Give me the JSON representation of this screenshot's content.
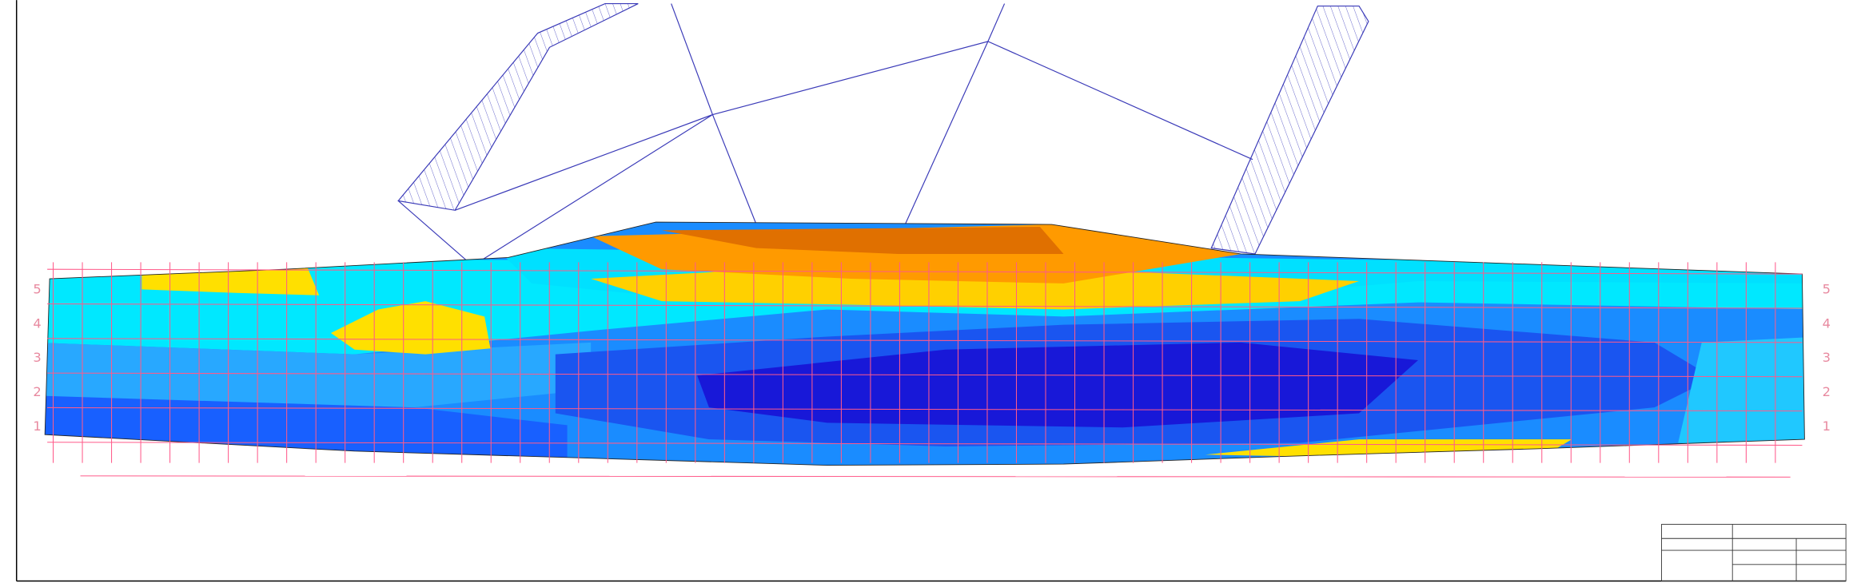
{
  "grid_rows": {
    "left": [
      "1",
      "2",
      "3",
      "4",
      "5"
    ],
    "right": [
      "1",
      "2",
      "3",
      "4",
      "5"
    ]
  }
}
